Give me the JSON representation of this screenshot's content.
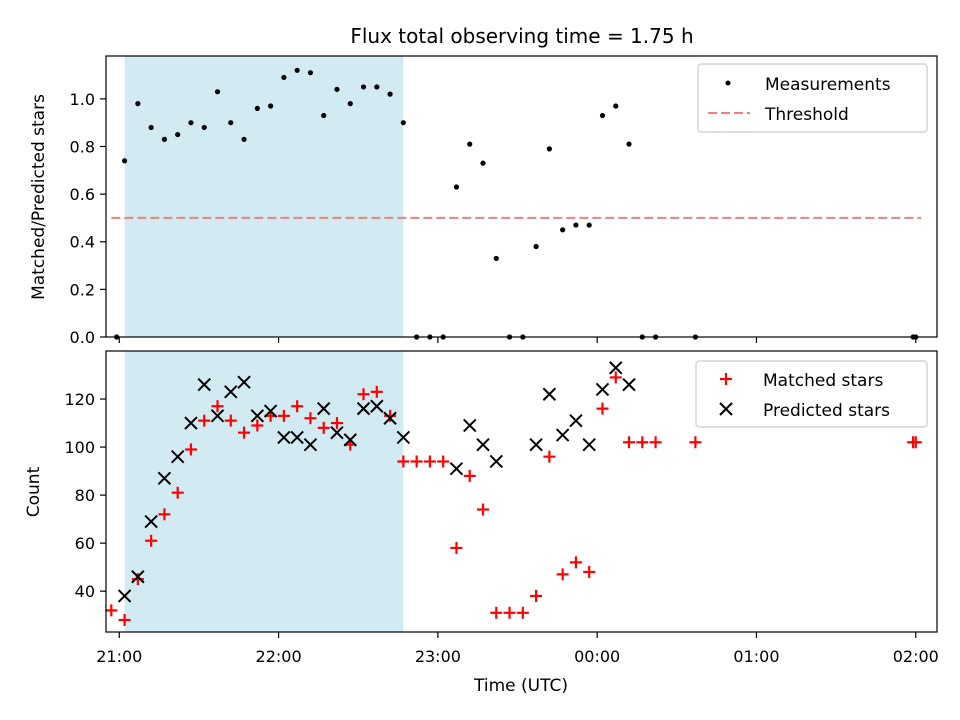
{
  "figure": {
    "title": "Flux total observing time = 1.75 h"
  },
  "chart_data": [
    {
      "type": "scatter",
      "panel": "top",
      "ylabel": "Matched/Predicted stars",
      "xlabel": "",
      "xlim": [
        "20:55",
        "02:08"
      ],
      "ylim": [
        0,
        1.18
      ],
      "yticks": [
        0.0,
        0.2,
        0.4,
        0.6,
        0.8,
        1.0
      ],
      "ytick_labels": [
        "0.0",
        "0.2",
        "0.4",
        "0.6",
        "0.8",
        "1.0"
      ],
      "xticks": [
        "21:00",
        "22:00",
        "23:00",
        "00:00",
        "01:00",
        "02:00"
      ],
      "shaded_span": {
        "x": [
          "21:02",
          "22:47"
        ],
        "color": "#add8e6"
      },
      "legend_position": "upper right",
      "series": [
        {
          "name": "Measurements",
          "marker": "dot",
          "color": "#000000",
          "x": [
            "20:59",
            "21:02",
            "21:07",
            "21:12",
            "21:17",
            "21:22",
            "21:27",
            "21:32",
            "21:37",
            "21:42",
            "21:47",
            "21:52",
            "21:57",
            "22:02",
            "22:07",
            "22:12",
            "22:17",
            "22:22",
            "22:27",
            "22:32",
            "22:37",
            "22:42",
            "22:47",
            "22:52",
            "22:57",
            "23:02",
            "23:07",
            "23:12",
            "23:17",
            "23:22",
            "23:27",
            "23:32",
            "23:37",
            "23:42",
            "23:47",
            "23:52",
            "23:57",
            "00:02",
            "00:07",
            "00:12",
            "00:17",
            "00:22",
            "00:37",
            "01:59",
            "02:00"
          ],
          "y": [
            0.0,
            0.74,
            0.98,
            0.88,
            0.83,
            0.85,
            0.9,
            0.88,
            1.03,
            0.9,
            0.83,
            0.96,
            0.97,
            1.09,
            1.12,
            1.11,
            0.93,
            1.04,
            0.98,
            1.05,
            1.05,
            1.02,
            0.9,
            0.0,
            0.0,
            0.0,
            0.63,
            0.81,
            0.73,
            0.33,
            0.0,
            0.0,
            0.38,
            0.79,
            0.45,
            0.47,
            0.47,
            0.93,
            0.97,
            0.81,
            0.0,
            0.0,
            0.0,
            0.0,
            0.0
          ]
        },
        {
          "name": "Threshold",
          "marker": "dashed-line",
          "color": "#f08080",
          "x": [
            "20:57",
            "02:02"
          ],
          "y": [
            0.5,
            0.5
          ]
        }
      ]
    },
    {
      "type": "scatter",
      "panel": "bottom",
      "ylabel": "Count",
      "xlabel": "Time (UTC)",
      "xlim": [
        "20:55",
        "02:08"
      ],
      "ylim": [
        23,
        140
      ],
      "yticks": [
        40,
        60,
        80,
        100,
        120
      ],
      "ytick_labels": [
        "40",
        "60",
        "80",
        "100",
        "120"
      ],
      "xticks": [
        "21:00",
        "22:00",
        "23:00",
        "00:00",
        "01:00",
        "02:00"
      ],
      "xtick_labels": [
        "21:00",
        "22:00",
        "23:00",
        "00:00",
        "01:00",
        "02:00"
      ],
      "shaded_span": {
        "x": [
          "21:02",
          "22:47"
        ],
        "color": "#add8e6"
      },
      "legend_position": "upper right",
      "series": [
        {
          "name": "Matched stars",
          "marker": "plus",
          "color": "#ff0000",
          "x": [
            "20:57",
            "21:02",
            "21:07",
            "21:12",
            "21:17",
            "21:22",
            "21:27",
            "21:32",
            "21:37",
            "21:42",
            "21:47",
            "21:52",
            "21:57",
            "22:02",
            "22:07",
            "22:12",
            "22:17",
            "22:22",
            "22:27",
            "22:32",
            "22:37",
            "22:42",
            "22:47",
            "22:52",
            "22:57",
            "23:02",
            "23:07",
            "23:12",
            "23:17",
            "23:22",
            "23:27",
            "23:32",
            "23:37",
            "23:42",
            "23:47",
            "23:52",
            "23:57",
            "00:02",
            "00:07",
            "00:12",
            "00:17",
            "00:22",
            "00:37",
            "01:59",
            "02:00"
          ],
          "y": [
            32,
            28,
            45,
            61,
            72,
            81,
            99,
            111,
            117,
            111,
            106,
            109,
            113,
            113,
            117,
            112,
            108,
            110,
            101,
            122,
            123,
            113,
            94,
            94,
            94,
            94,
            58,
            88,
            74,
            31,
            31,
            31,
            38,
            96,
            47,
            52,
            48,
            116,
            129,
            102,
            102,
            102,
            102,
            102,
            102
          ]
        },
        {
          "name": "Predicted stars",
          "marker": "x",
          "color": "#000000",
          "x": [
            "21:02",
            "21:07",
            "21:12",
            "21:17",
            "21:22",
            "21:27",
            "21:32",
            "21:37",
            "21:42",
            "21:47",
            "21:52",
            "21:57",
            "22:02",
            "22:07",
            "22:12",
            "22:17",
            "22:22",
            "22:27",
            "22:32",
            "22:37",
            "22:42",
            "22:47",
            "23:07",
            "23:12",
            "23:17",
            "23:22",
            "23:37",
            "23:42",
            "23:47",
            "23:52",
            "23:57",
            "00:02",
            "00:07",
            "00:12"
          ],
          "y": [
            38,
            46,
            69,
            87,
            96,
            110,
            126,
            113,
            123,
            127,
            113,
            115,
            104,
            104,
            101,
            116,
            106,
            103,
            116,
            117,
            112,
            104,
            91,
            109,
            101,
            94,
            101,
            122,
            105,
            111,
            101,
            124,
            133,
            126
          ]
        }
      ]
    }
  ]
}
